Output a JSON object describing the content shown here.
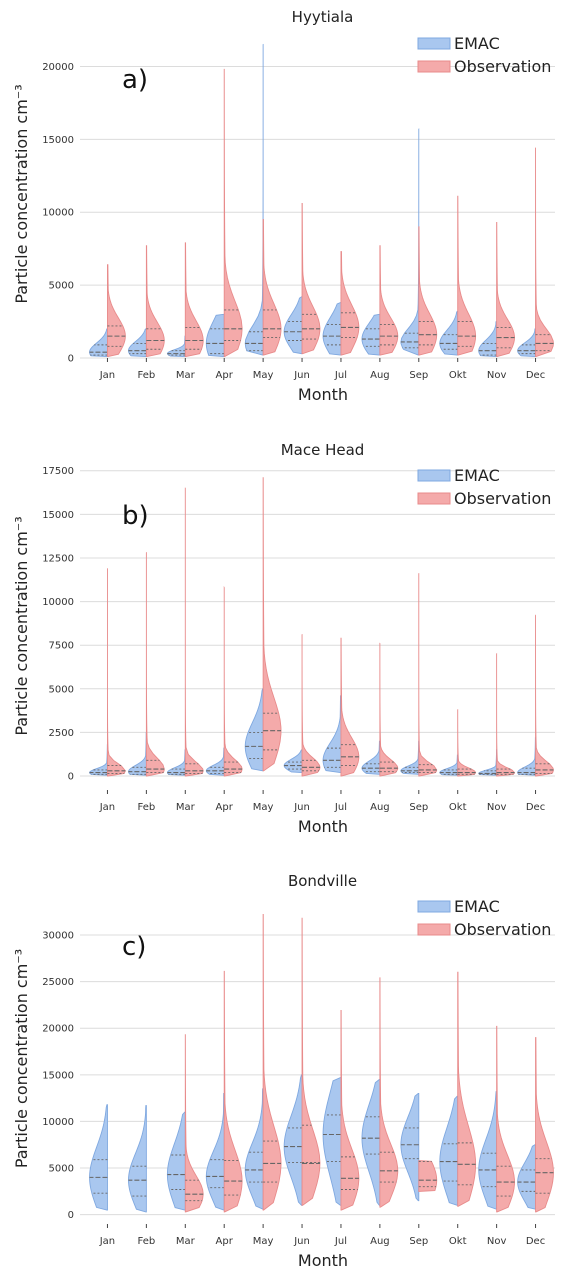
{
  "colors": {
    "emac_fill": "#a9c7ef",
    "emac_edge": "#7fa8e0",
    "obs_fill": "#f4aaaa",
    "obs_edge": "#e88b8b",
    "grid": "#dcdcdc",
    "quartile": "#666666"
  },
  "chart_data": [
    {
      "type": "violin",
      "title": "Hyytiala",
      "panel_label": "a)",
      "xlabel": "Month",
      "ylabel": "Particle concentration cm⁻³",
      "ylim": [
        0,
        22500
      ],
      "yticks": [
        0,
        5000,
        10000,
        15000,
        20000
      ],
      "legend": {
        "position": "top-right",
        "entries": [
          "EMAC",
          "Observation"
        ]
      },
      "grid": true,
      "categories": [
        "Jan",
        "Feb",
        "Mar",
        "Apr",
        "May",
        "Jun",
        "Jul",
        "Aug",
        "Sep",
        "Okt",
        "Nov",
        "Dec"
      ],
      "series": [
        {
          "name": "EMAC",
          "side": "left",
          "min": [
            100,
            100,
            100,
            100,
            200,
            300,
            200,
            200,
            200,
            200,
            100,
            100
          ],
          "q1": [
            200,
            300,
            200,
            300,
            500,
            1200,
            900,
            800,
            700,
            600,
            200,
            300
          ],
          "median": [
            400,
            500,
            300,
            1000,
            1000,
            1800,
            1500,
            1300,
            1100,
            1000,
            500,
            500
          ],
          "q3": [
            900,
            1000,
            500,
            2000,
            1800,
            2500,
            2300,
            2000,
            1700,
            1600,
            1000,
            900
          ],
          "max": [
            2000,
            2000,
            1500,
            3000,
            21500,
            4200,
            3800,
            3000,
            15700,
            3200,
            2500,
            2000
          ]
        },
        {
          "name": "Observation",
          "side": "right",
          "min": [
            100,
            100,
            100,
            100,
            200,
            300,
            200,
            200,
            200,
            200,
            100,
            100
          ],
          "q1": [
            800,
            600,
            600,
            1200,
            1400,
            1300,
            1400,
            900,
            900,
            800,
            700,
            500
          ],
          "median": [
            1500,
            1200,
            1200,
            2000,
            2000,
            2000,
            2100,
            1500,
            1600,
            1500,
            1400,
            1000
          ],
          "q3": [
            2200,
            2000,
            2100,
            3300,
            3300,
            3000,
            3100,
            2300,
            2500,
            2500,
            2100,
            1600
          ],
          "max": [
            6400,
            7700,
            7900,
            19800,
            9500,
            10600,
            7300,
            7700,
            9000,
            11100,
            9300,
            14400
          ]
        }
      ]
    },
    {
      "type": "violin",
      "title": "Mace Head",
      "panel_label": "b)",
      "xlabel": "Month",
      "ylabel": "Particle concentration cm⁻³",
      "ylim": [
        -800,
        18000
      ],
      "yticks": [
        0,
        2500,
        5000,
        7500,
        10000,
        12500,
        15000,
        17500
      ],
      "legend": {
        "position": "top-right",
        "entries": [
          "EMAC",
          "Observation"
        ]
      },
      "grid": true,
      "categories": [
        "Jan",
        "Feb",
        "Mar",
        "Apr",
        "May",
        "Jun",
        "Jul",
        "Aug",
        "Sep",
        "Okt",
        "Nov",
        "Dec"
      ],
      "series": [
        {
          "name": "EMAC",
          "side": "left",
          "min": [
            50,
            50,
            50,
            50,
            300,
            200,
            200,
            100,
            100,
            50,
            50,
            50
          ],
          "q1": [
            100,
            100,
            100,
            150,
            1000,
            400,
            500,
            250,
            200,
            100,
            100,
            100
          ],
          "median": [
            200,
            250,
            200,
            300,
            1700,
            600,
            900,
            450,
            300,
            200,
            150,
            200
          ],
          "q3": [
            350,
            500,
            400,
            500,
            2500,
            800,
            1600,
            700,
            500,
            350,
            300,
            450
          ],
          "max": [
            1800,
            2500,
            1500,
            1600,
            5000,
            1500,
            4600,
            2000,
            2000,
            1200,
            1500,
            2200
          ]
        },
        {
          "name": "Observation",
          "side": "right",
          "min": [
            0,
            0,
            0,
            0,
            300,
            0,
            0,
            0,
            0,
            0,
            0,
            0
          ],
          "q1": [
            150,
            200,
            150,
            200,
            1500,
            300,
            600,
            250,
            200,
            100,
            100,
            150
          ],
          "median": [
            300,
            400,
            300,
            400,
            2600,
            500,
            1100,
            450,
            350,
            200,
            200,
            350
          ],
          "q3": [
            600,
            900,
            700,
            800,
            3600,
            900,
            1800,
            800,
            650,
            400,
            400,
            700
          ],
          "max": [
            11900,
            12800,
            16500,
            10800,
            17100,
            8100,
            7900,
            7600,
            11600,
            3800,
            7000,
            9200
          ]
        }
      ]
    },
    {
      "type": "violin",
      "title": "Bondville",
      "panel_label": "c)",
      "xlabel": "Month",
      "ylabel": "Particle concentration cm⁻³",
      "ylim": [
        -1000,
        34500
      ],
      "yticks": [
        0,
        5000,
        10000,
        15000,
        20000,
        25000,
        30000
      ],
      "legend": {
        "position": "top-right",
        "entries": [
          "EMAC",
          "Observation"
        ]
      },
      "grid": true,
      "categories": [
        "Jan",
        "Feb",
        "Mar",
        "Apr",
        "May",
        "Jun",
        "Jul",
        "Aug",
        "Sep",
        "Okt",
        "Nov",
        "Dec"
      ],
      "series": [
        {
          "name": "EMAC",
          "side": "left",
          "min": [
            500,
            300,
            500,
            500,
            600,
            1000,
            1000,
            1000,
            1500,
            1000,
            600,
            600
          ],
          "q1": [
            2300,
            2000,
            2700,
            2900,
            3500,
            5600,
            5700,
            6500,
            6000,
            3600,
            3000,
            2500
          ],
          "median": [
            4000,
            3700,
            4300,
            4100,
            4800,
            7300,
            8600,
            8200,
            7500,
            5700,
            4800,
            3500
          ],
          "q3": [
            5900,
            5200,
            6400,
            5900,
            6700,
            9300,
            10700,
            10500,
            9300,
            7600,
            6600,
            4800
          ],
          "max": [
            11800,
            11700,
            11000,
            13000,
            13500,
            15000,
            14700,
            14500,
            13000,
            12700,
            13200,
            7500
          ]
        },
        {
          "name": "Observation",
          "side": "right",
          "min": [
            null,
            null,
            300,
            300,
            500,
            1000,
            500,
            800,
            2500,
            900,
            300,
            300
          ],
          "q1": [
            null,
            null,
            1500,
            2100,
            3500,
            5600,
            2700,
            3500,
            3000,
            3200,
            2000,
            2300
          ],
          "median": [
            null,
            null,
            2200,
            3600,
            5500,
            5500,
            3900,
            4700,
            3700,
            5400,
            3500,
            4500
          ],
          "q3": [
            null,
            null,
            3700,
            5800,
            7900,
            9600,
            6200,
            6700,
            5700,
            7700,
            5200,
            6000
          ],
          "max": [
            null,
            null,
            19300,
            26100,
            32200,
            31800,
            21900,
            25400,
            5800,
            26000,
            20200,
            19000
          ]
        }
      ]
    }
  ]
}
